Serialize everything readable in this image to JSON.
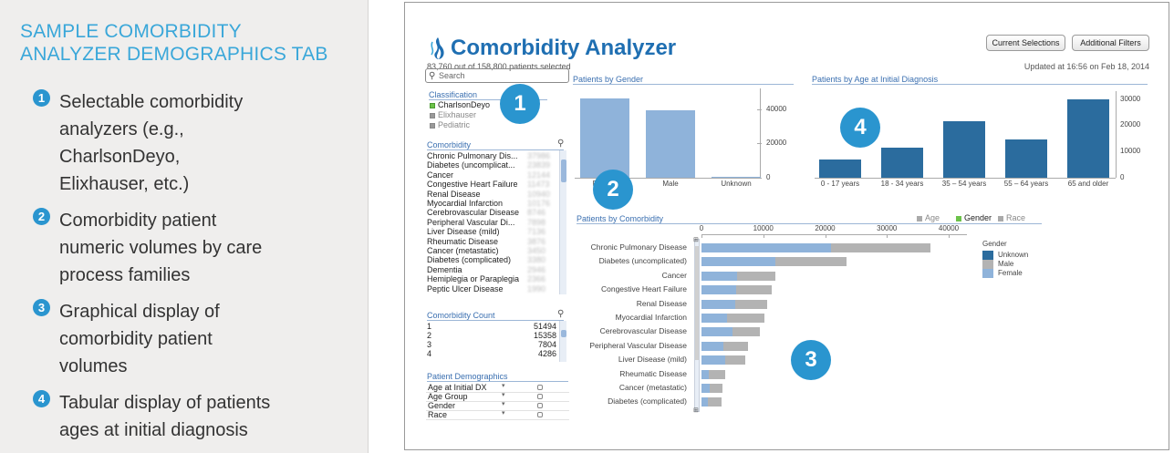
{
  "left_panel": {
    "title": "SAMPLE COMORBIDITY\nANALYZER DEMOGRAPHICS TAB",
    "features": [
      {
        "num": "1",
        "text": "Selectable comorbidity\nanalyzers (e.g.,\nCharlsonDeyo,\n Elixhauser, etc.)"
      },
      {
        "num": "2",
        "text": "Comorbidity patient\nnumeric volumes by care\nprocess families"
      },
      {
        "num": "3",
        "text": "Graphical display of\ncomorbidity patient\nvolumes"
      },
      {
        "num": "4",
        "text": "Tabular display of patients\nages at initial diagnosis"
      }
    ]
  },
  "app": {
    "title": "Comorbidity Analyzer",
    "subtitle": "83,760 out of 158,800 patients selected",
    "updated": "Updated at 16:56 on Feb 18, 2014",
    "buttons": {
      "current_selections": "Current Selections",
      "additional_filters": "Additional Filters"
    },
    "search_placeholder": "Search",
    "colors": {
      "accent": "#1f6fb2",
      "bar_light": "#8fb3da",
      "bar_dark": "#2b6c9e",
      "bar_grey": "#b3b3b3",
      "badge": "#2a95cf"
    }
  },
  "classification": {
    "title": "Classification",
    "items": [
      {
        "label": "CharlsonDeyo",
        "color": "#6cc24a"
      },
      {
        "label": "Elixhauser",
        "color": "#999999"
      },
      {
        "label": "Pediatric",
        "color": "#999999"
      }
    ]
  },
  "comorbidity_list": {
    "title": "Comorbidity",
    "items": [
      "Chronic Pulmonary Dis...",
      "Diabetes (uncomplicat...",
      "Cancer",
      "Congestive Heart Failure",
      "Renal Disease",
      "Myocardial Infarction",
      "Cerebrovascular Disease",
      "Peripheral Vascular Di...",
      "Liver Disease (mild)",
      "Rheumatic Disease",
      "Cancer (metastatic)",
      "Diabetes (complicated)",
      "Dementia",
      "Hemiplegia or Paraplegia",
      "Peptic Ulcer Disease"
    ],
    "counts": [
      "37986",
      "23839",
      "12144",
      "11473",
      "10940",
      "10176",
      "8746",
      "7898",
      "7136",
      "3876",
      "3450",
      "3380",
      "2946",
      "2366",
      "1990"
    ]
  },
  "comorbidity_count": {
    "title": "Comorbidity Count",
    "rows": [
      {
        "k": "1",
        "v": "51494"
      },
      {
        "k": "2",
        "v": "15358"
      },
      {
        "k": "3",
        "v": "7804"
      },
      {
        "k": "4",
        "v": "4286"
      }
    ]
  },
  "patient_demographics": {
    "title": "Patient Demographics",
    "rows": [
      "Age at  Initial DX",
      "Age Group",
      "Gender",
      "Race"
    ]
  },
  "badges": [
    "1",
    "2",
    "3",
    "4"
  ],
  "chart_data": [
    {
      "type": "bar",
      "title": "Patients by Gender",
      "categories": [
        "Female",
        "Male",
        "Unknown"
      ],
      "values": [
        46000,
        39500,
        300
      ],
      "ylim": [
        0,
        52000
      ],
      "yticks": [
        "40000",
        "20000",
        "0"
      ],
      "colors": [
        "#8fb3da",
        "#8fb3da",
        "#8fb3da"
      ]
    },
    {
      "type": "bar",
      "title": "Patients by Age at Initial Diagnosis",
      "categories": [
        "0 - 17 years",
        "18 - 34 years",
        "35 – 54 years",
        "55 – 64 years",
        "65 and older"
      ],
      "values": [
        7000,
        11500,
        21500,
        14500,
        30000
      ],
      "ylim": [
        0,
        33000
      ],
      "yticks": [
        "30000",
        "20000",
        "10000",
        "0"
      ],
      "colors": [
        "#2b6c9e"
      ]
    },
    {
      "type": "bar",
      "orientation": "horizontal",
      "stacked": true,
      "title": "Patients by Comorbidity",
      "tabs": [
        "Age",
        "Gender",
        "Race"
      ],
      "xticks": [
        "0",
        "10000",
        "20000",
        "30000",
        "40000"
      ],
      "xlim": [
        0,
        40000
      ],
      "categories": [
        "Chronic Pulmonary Disease",
        "Diabetes (uncomplicated)",
        "Cancer",
        "Congestive Heart Failure",
        "Renal Disease",
        "Myocardial Infarction",
        "Cerebrovascular Disease",
        "Peripheral Vascular Disease",
        "Liver Disease (mild)",
        "Rheumatic Disease",
        "Cancer (metastatic)",
        "Diabetes (complicated)"
      ],
      "series": [
        {
          "name": "Unknown",
          "color": "#2b6c9e",
          "values": [
            0,
            0,
            0,
            0,
            0,
            0,
            0,
            0,
            0,
            0,
            0,
            0
          ]
        },
        {
          "name": "Female",
          "color": "#8fb3da",
          "values": [
            21000,
            12000,
            5800,
            5600,
            5400,
            4200,
            5000,
            3500,
            3800,
            1200,
            1300,
            1000
          ]
        },
        {
          "name": "Male",
          "color": "#b3b3b3",
          "values": [
            16000,
            11500,
            6200,
            5800,
            5300,
            6000,
            4500,
            4000,
            3300,
            2600,
            2100,
            2300
          ]
        }
      ],
      "legend": {
        "title": "Gender",
        "items": [
          "Unknown",
          "Male",
          "Female"
        ]
      }
    }
  ]
}
